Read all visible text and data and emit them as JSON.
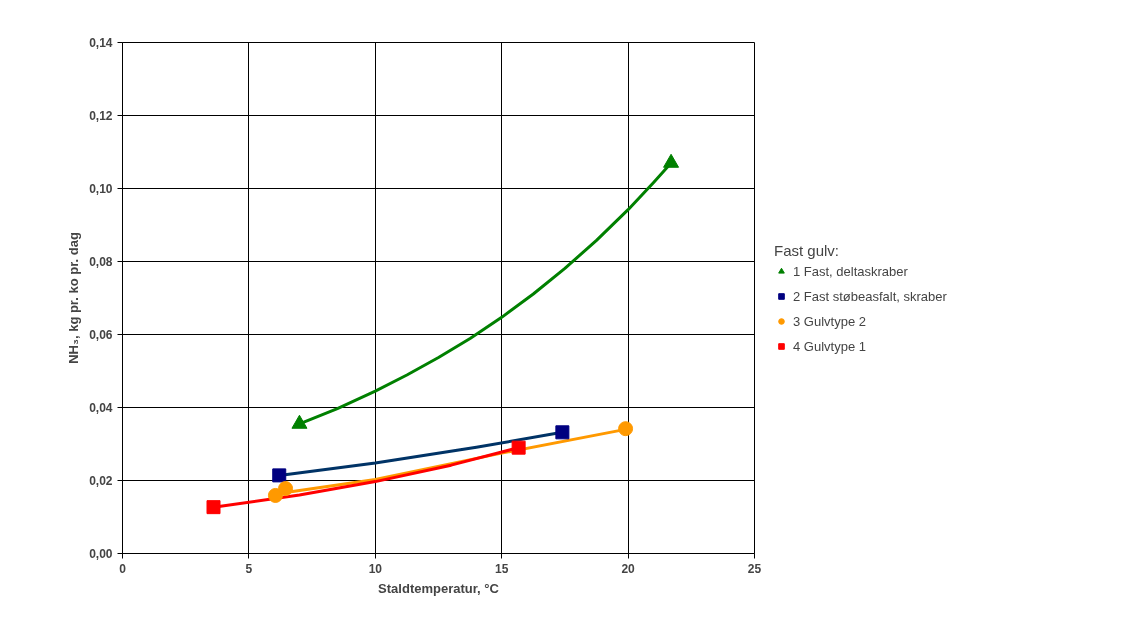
{
  "chart_data": {
    "type": "scatter",
    "xlabel": "Staldtemperatur, °C",
    "ylabel": "NH₃, kg pr. ko pr. dag",
    "legend_title": "Fast gulv:",
    "legend": "right",
    "grid": true,
    "xlim": [
      0,
      25
    ],
    "xticks": [
      0,
      5,
      10,
      15,
      20,
      25
    ],
    "ylim": [
      0,
      0.14
    ],
    "yticks": [
      {
        "value": 0,
        "label": "0,00"
      },
      {
        "value": 0.02,
        "label": "0,02"
      },
      {
        "value": 0.04,
        "label": "0,04"
      },
      {
        "value": 0.06,
        "label": "0,06"
      },
      {
        "value": 0.08,
        "label": "0,08"
      },
      {
        "value": 0.1,
        "label": "0,10"
      },
      {
        "value": 0.12,
        "label": "0,12"
      },
      {
        "value": 0.14,
        "label": "0,14"
      }
    ],
    "series": [
      {
        "type": "line",
        "color": "#008000",
        "marker": "none",
        "x": [
          7,
          8.5,
          10,
          11.25,
          12.5,
          13.75,
          15,
          16.25,
          17.5,
          18.75,
          20,
          21,
          21.7
        ],
        "values": [
          0.0355,
          0.0397,
          0.0445,
          0.0489,
          0.0537,
          0.0589,
          0.0647,
          0.0711,
          0.0781,
          0.0858,
          0.0942,
          0.1016,
          0.107
        ]
      },
      {
        "type": "line",
        "color": "#003366",
        "marker": "none",
        "x": [
          6.2,
          10,
          14,
          17.4
        ],
        "values": [
          0.0214,
          0.0248,
          0.0291,
          0.0332
        ]
      },
      {
        "type": "line",
        "color": "#ff9900",
        "marker": "none",
        "x": [
          6.05,
          10,
          15,
          19.9
        ],
        "values": [
          0.0163,
          0.0203,
          0.0275,
          0.034
        ]
      },
      {
        "type": "line",
        "color": "#ff0000",
        "marker": "none",
        "x": [
          3.6,
          7,
          10,
          13,
          15.67
        ],
        "values": [
          0.0127,
          0.016,
          0.0197,
          0.0242,
          0.029
        ]
      },
      {
        "name": "1 Fast, deltaskraber",
        "color": "#008000",
        "marker": "triangle",
        "x": [
          7,
          21.7
        ],
        "values": [
          0.0355,
          0.107
        ]
      },
      {
        "name": "2 Fast støbeasfalt, skraber",
        "color": "#000080",
        "marker": "square",
        "x": [
          6.2,
          17.4
        ],
        "values": [
          0.0214,
          0.0332
        ]
      },
      {
        "name": "3 Gulvtype 2",
        "color": "#ff9900",
        "marker": "circle",
        "x": [
          6.05,
          6.45,
          19.9
        ],
        "values": [
          0.0159,
          0.0178,
          0.0342
        ]
      },
      {
        "name": "4 Gulvtype 1",
        "color": "#ff0000",
        "marker": "square",
        "x": [
          3.6,
          15.67
        ],
        "values": [
          0.0127,
          0.029
        ]
      }
    ]
  }
}
